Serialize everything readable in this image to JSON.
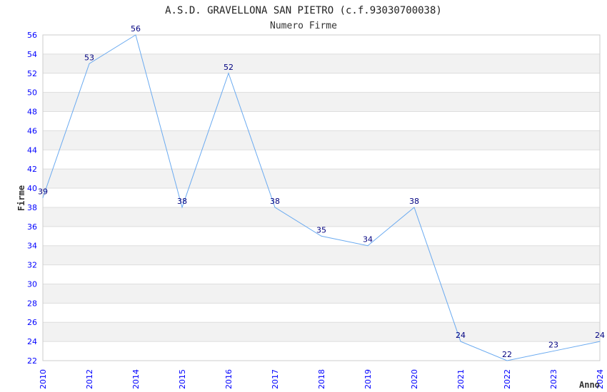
{
  "chart_data": {
    "type": "line",
    "title": "A.S.D. GRAVELLONA SAN PIETRO (c.f.93030700038)",
    "subtitle": "Numero Firme",
    "xlabel": "Anno",
    "ylabel": "Firme",
    "categories": [
      "2010",
      "2012",
      "2014",
      "2015",
      "2016",
      "2017",
      "2018",
      "2019",
      "2020",
      "2021",
      "2022",
      "2023",
      "2024"
    ],
    "series": [
      {
        "name": "Firme",
        "values": [
          39,
          53,
          56,
          38,
          52,
          38,
          35,
          34,
          38,
          24,
          22,
          23,
          24
        ]
      }
    ],
    "ylim": [
      22,
      56
    ],
    "ytick_step": 2,
    "grid": true,
    "colors": {
      "line": "#6aaaf0",
      "band": "#f2f2f2",
      "grid": "#dddddd",
      "tick": "#0000ff",
      "label": "#000080"
    }
  }
}
